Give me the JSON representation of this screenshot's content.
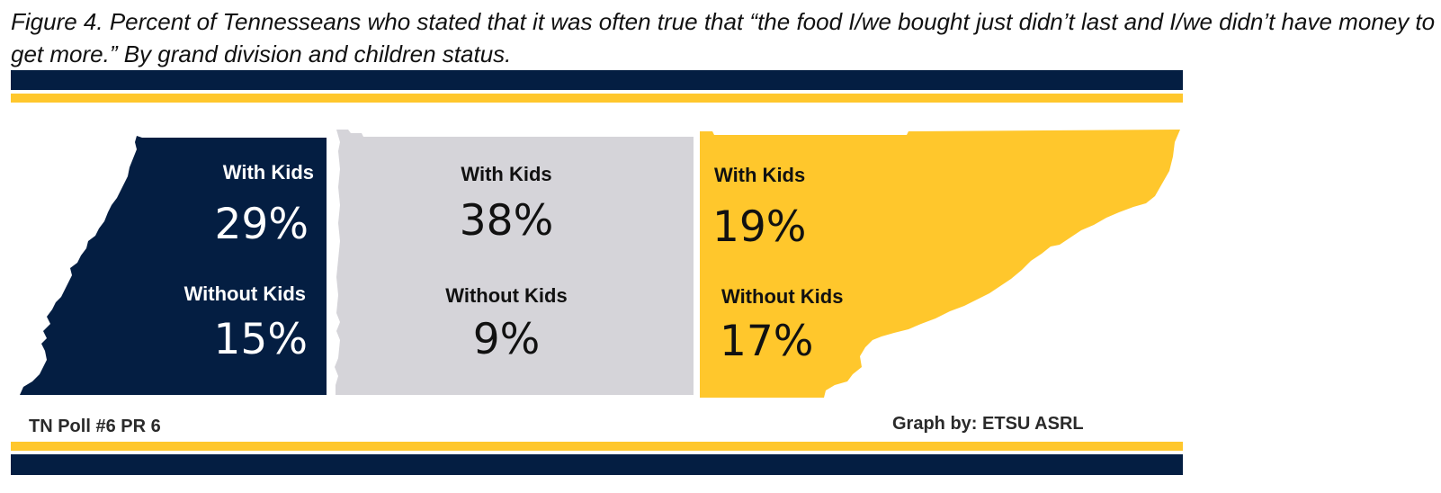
{
  "caption": "Figure 4. Percent of Tennesseans who stated that it was often true that “the food I/we bought just didn’t last and I/we didn’t have money to get more.” By grand division and children status.",
  "colors": {
    "west": "#041e42",
    "middle": "#d5d4d9",
    "east": "#ffc72c",
    "navy": "#041e42",
    "gold": "#ffc72c"
  },
  "chart_data": {
    "type": "table",
    "title": "",
    "groups": [
      "With Kids",
      "Without Kids"
    ],
    "series": [
      {
        "region": "west",
        "values": [
          29,
          15
        ],
        "labels": [
          "29%",
          "15%"
        ]
      },
      {
        "region": "middle",
        "values": [
          38,
          9
        ],
        "labels": [
          "38%",
          "9%"
        ]
      },
      {
        "region": "east",
        "values": [
          19,
          17
        ],
        "labels": [
          "19%",
          "17%"
        ]
      }
    ],
    "unit": "%"
  },
  "footer": {
    "left": "TN Poll #6 PR 6",
    "right": "Graph by: ETSU ASRL"
  }
}
